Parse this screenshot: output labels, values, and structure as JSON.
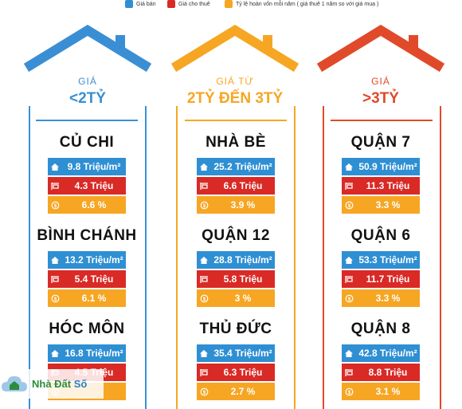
{
  "legend": [
    {
      "label": "Giá bán",
      "color": "#2f8fd3",
      "icon": "house-icon"
    },
    {
      "label": "Giá cho thuê",
      "color": "#d92a26",
      "icon": "rent-sign-icon"
    },
    {
      "label": "Tỷ lệ hoàn vốn mỗi năm ( giá thuê 1 năm so với giá mua )",
      "color": "#f6a623",
      "icon": "coin-icon"
    }
  ],
  "columns": [
    {
      "color": "#3a8fd4",
      "pre": "GIÁ",
      "main": "<2TỶ",
      "districts": [
        {
          "name": "CỦ CHI",
          "price": "9.8 Triệu/m²",
          "rent": "4.3 Triệu",
          "ratio": "6.6 %"
        },
        {
          "name": "BÌNH CHÁNH",
          "price": "13.2 Triệu/m²",
          "rent": "5.4 Triệu",
          "ratio": "6.1 %"
        },
        {
          "name": "HÓC MÔN",
          "price": "16.8 Triệu/m²",
          "rent": "4.5 Triệu",
          "ratio": ""
        }
      ]
    },
    {
      "color": "#f6a623",
      "pre": "GIÁ TỪ",
      "main": "2TỶ ĐẾN 3TỶ",
      "districts": [
        {
          "name": "NHÀ BÈ",
          "price": "25.2 Triệu/m²",
          "rent": "6.6 Triệu",
          "ratio": "3.9 %"
        },
        {
          "name": "QUẬN 12",
          "price": "28.8 Triệu/m²",
          "rent": "5.8 Triệu",
          "ratio": "3 %"
        },
        {
          "name": "THỦ ĐỨC",
          "price": "35.4 Triệu/m²",
          "rent": "6.3 Triệu",
          "ratio": "2.7 %"
        }
      ]
    },
    {
      "color": "#e04a2a",
      "pre": "GIÁ",
      "main": ">3TỶ",
      "districts": [
        {
          "name": "QUẬN 7",
          "price": "50.9 Triệu/m²",
          "rent": "11.3 Triệu",
          "ratio": "3.3 %"
        },
        {
          "name": "QUẬN 6",
          "price": "53.3 Triệu/m²",
          "rent": "11.7 Triệu",
          "ratio": "3.3 %"
        },
        {
          "name": "QUẬN 8",
          "price": "42.8 Triệu/m²",
          "rent": "8.8 Triệu",
          "ratio": "3.1 %"
        }
      ]
    }
  ],
  "logo": {
    "part1": "Nhà Đất ",
    "part2": "Số"
  }
}
